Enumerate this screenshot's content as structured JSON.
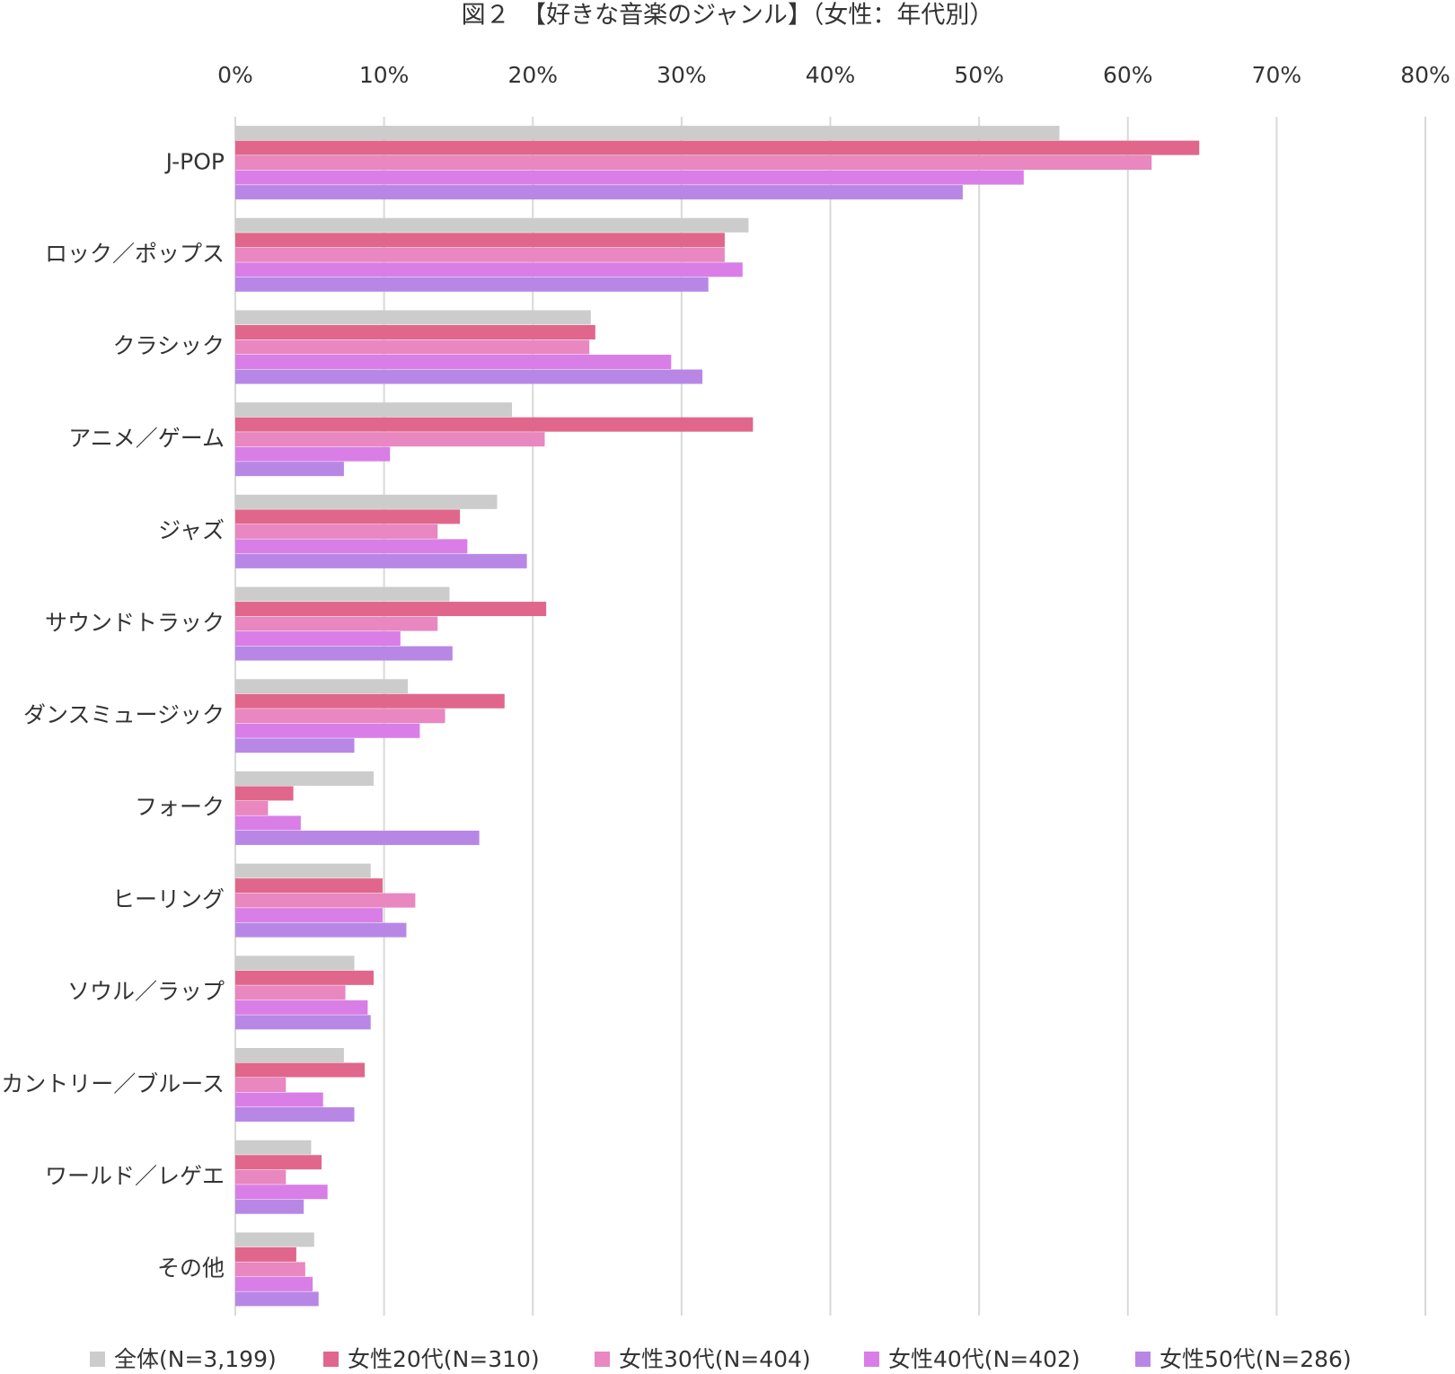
{
  "chart_data": {
    "type": "hbar",
    "title": "図２　【好きな音楽のジャンル】（女性：年代別）",
    "categories": [
      "J-POP",
      "ロック／ポップス",
      "クラシック",
      "アニメ／ゲーム",
      "ジャズ",
      "サウンドトラック",
      "ダンスミュージック",
      "フォーク",
      "ヒーリング",
      "ソウル／ラップ",
      "カントリー／ブルース",
      "ワールド／レゲエ",
      "その他"
    ],
    "series": [
      {
        "name": "全体(N=3,199)",
        "color": "#cccccc",
        "values": [
          55.4,
          34.5,
          23.9,
          18.6,
          17.6,
          14.4,
          11.6,
          9.3,
          9.1,
          8.0,
          7.3,
          5.1,
          5.3
        ]
      },
      {
        "name": "女性20代(N=310)",
        "color": "#e0678b",
        "values": [
          64.8,
          32.9,
          24.2,
          34.8,
          15.1,
          20.9,
          18.1,
          3.9,
          9.9,
          9.3,
          8.7,
          5.8,
          4.1
        ]
      },
      {
        "name": "女性30代(N=404)",
        "color": "#e887c0",
        "values": [
          61.6,
          32.9,
          23.8,
          20.8,
          13.6,
          13.6,
          14.1,
          2.2,
          12.1,
          7.4,
          3.4,
          3.4,
          4.7
        ]
      },
      {
        "name": "女性40代(N=402)",
        "color": "#d97ee6",
        "values": [
          53.0,
          34.1,
          29.3,
          10.4,
          15.6,
          11.1,
          12.4,
          4.4,
          9.9,
          8.9,
          5.9,
          6.2,
          5.2
        ]
      },
      {
        "name": "女性50代(N=286)",
        "color": "#b887e6",
        "values": [
          48.9,
          31.8,
          31.4,
          7.3,
          19.6,
          14.6,
          8.0,
          16.4,
          11.5,
          9.1,
          8.0,
          4.6,
          5.6
        ]
      }
    ],
    "xlim": [
      0,
      80
    ],
    "xticks": [
      {
        "value": 0,
        "label": "0%"
      },
      {
        "value": 10,
        "label": "10%"
      },
      {
        "value": 20,
        "label": "20%"
      },
      {
        "value": 30,
        "label": "30%"
      },
      {
        "value": 40,
        "label": "40%"
      },
      {
        "value": 50,
        "label": "50%"
      },
      {
        "value": 60,
        "label": "60%"
      },
      {
        "value": 70,
        "label": "70%"
      },
      {
        "value": 80,
        "label": "80%"
      }
    ],
    "grid": true
  }
}
